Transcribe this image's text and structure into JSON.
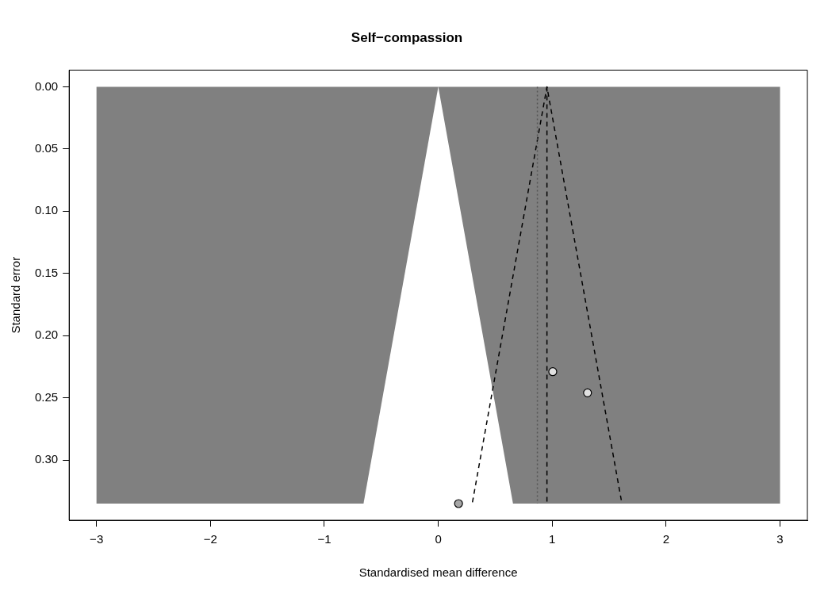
{
  "chart_data": {
    "type": "scatter",
    "title": "Self−compassion",
    "xlabel": "Standardised mean difference",
    "ylabel": "Standard error",
    "xlim": [
      -3.24,
      3.24
    ],
    "ylim": [
      0.3484,
      -0.0134
    ],
    "xticks": [
      {
        "value": -3,
        "label": "−3"
      },
      {
        "value": -2,
        "label": "−2"
      },
      {
        "value": -1,
        "label": "−1"
      },
      0,
      1,
      2,
      3
    ],
    "yticks": [
      {
        "value": 0,
        "label": "0.00"
      },
      {
        "value": 0.05,
        "label": "0.05"
      },
      {
        "value": 0.1,
        "label": "0.10"
      },
      {
        "value": 0.15,
        "label": "0.15"
      },
      {
        "value": 0.2,
        "label": "0.20"
      },
      {
        "value": 0.25,
        "label": "0.25"
      },
      {
        "value": 0.3,
        "label": "0.30"
      }
    ],
    "grid": false,
    "legend": false,
    "marker": "circle",
    "series": [
      {
        "type": "area",
        "marker": "none",
        "color": "#808080",
        "x": [
          -3,
          0,
          -0.656,
          -3
        ],
        "values": [
          0,
          0,
          0.335,
          0.335
        ]
      },
      {
        "type": "area",
        "marker": "none",
        "color": "#808080",
        "x": [
          0,
          3,
          3,
          0.656
        ],
        "values": [
          0,
          0,
          0.335,
          0.335
        ]
      },
      {
        "type": "line",
        "marker": "none",
        "color": "#000000",
        "line_style": "dashed",
        "x": [
          0.3,
          0.954,
          1.61
        ],
        "values": [
          0.334,
          0,
          0.334
        ]
      },
      {
        "type": "scatter",
        "colors": [
          "#e0e0e0",
          "#e0e0e0",
          "#a6a6a6"
        ],
        "x": [
          1.005,
          1.31,
          0.178
        ],
        "values": [
          0.229,
          0.246,
          0.335
        ]
      }
    ],
    "ref_lines": [
      {
        "axis": "x",
        "value": 0.954,
        "color": "#000000",
        "line_style": "dashed"
      },
      {
        "axis": "x",
        "value": 0.87,
        "color": "#555555",
        "line_style": "dotted"
      }
    ]
  }
}
